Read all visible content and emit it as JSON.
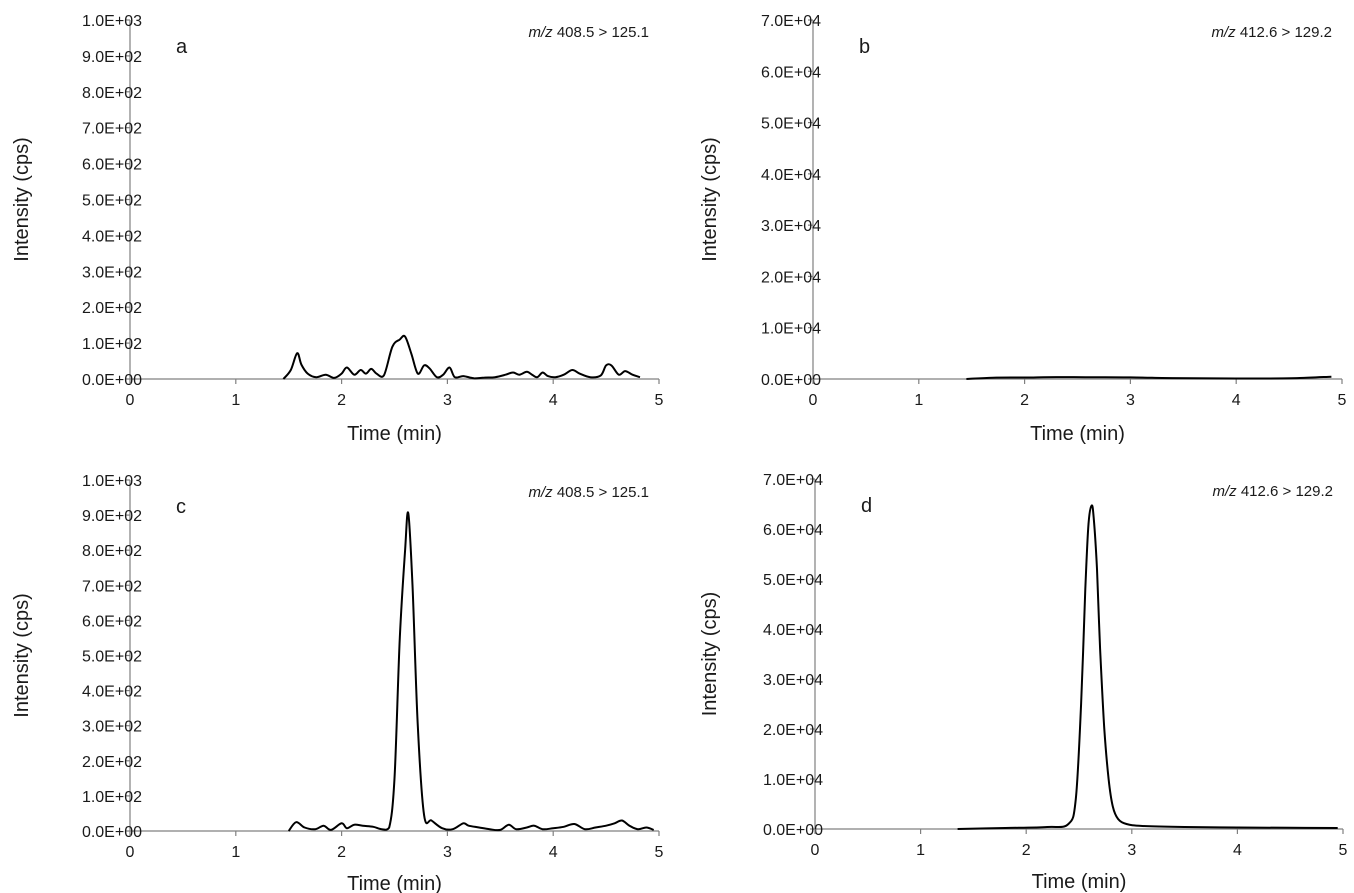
{
  "chart_data": [
    {
      "type": "line",
      "panel_label": "a",
      "annotation": {
        "mz": "m/z",
        "rest": "408.5  > 125.1"
      },
      "xlabel": "Time (min)",
      "ylabel": "Intensity (cps)",
      "xlim": [
        0,
        5
      ],
      "ylim": [
        0,
        1000
      ],
      "x_ticks": [
        0,
        1,
        2,
        3,
        4,
        5
      ],
      "x_tick_labels": [
        "0",
        "1",
        "2",
        "3",
        "4",
        "5"
      ],
      "y_ticks": [
        0,
        100,
        200,
        300,
        400,
        500,
        600,
        700,
        800,
        900,
        1000
      ],
      "y_tick_labels": [
        "0.0E+00",
        "1.0E+02",
        "2.0E+02",
        "3.0E+02",
        "4.0E+02",
        "5.0E+02",
        "6.0E+02",
        "7.0E+02",
        "8.0E+02",
        "9.0E+02",
        "1.0E+03"
      ],
      "line_color": "#000000",
      "series": [
        {
          "x": [
            1.45,
            1.52,
            1.58,
            1.62,
            1.68,
            1.76,
            1.85,
            1.93,
            2.0,
            2.05,
            2.12,
            2.18,
            2.23,
            2.28,
            2.33,
            2.4,
            2.48,
            2.55,
            2.6,
            2.66,
            2.72,
            2.78,
            2.83,
            2.9,
            2.96,
            3.02,
            3.07,
            3.15,
            3.25,
            3.35,
            3.45,
            3.55,
            3.62,
            3.68,
            3.75,
            3.8,
            3.85,
            3.9,
            3.95,
            4.02,
            4.1,
            4.18,
            4.25,
            4.35,
            4.45,
            4.5,
            4.55,
            4.62,
            4.68,
            4.75,
            4.82
          ],
          "y": [
            0,
            25,
            72,
            40,
            15,
            5,
            12,
            3,
            15,
            32,
            12,
            25,
            15,
            28,
            15,
            10,
            90,
            110,
            118,
            70,
            15,
            38,
            30,
            5,
            12,
            32,
            5,
            8,
            2,
            4,
            5,
            12,
            18,
            12,
            20,
            12,
            5,
            18,
            8,
            5,
            12,
            25,
            15,
            5,
            10,
            38,
            38,
            12,
            22,
            12,
            5
          ]
        }
      ]
    },
    {
      "type": "line",
      "panel_label": "b",
      "annotation": {
        "mz": "m/z",
        "rest": "412.6  > 129.2"
      },
      "xlabel": "Time (min)",
      "ylabel": "Intensity (cps)",
      "xlim": [
        0,
        5
      ],
      "ylim": [
        0,
        70000
      ],
      "x_ticks": [
        0,
        1,
        2,
        3,
        4,
        5
      ],
      "x_tick_labels": [
        "0",
        "1",
        "2",
        "3",
        "4",
        "5"
      ],
      "y_ticks": [
        0,
        10000,
        20000,
        30000,
        40000,
        50000,
        60000,
        70000
      ],
      "y_tick_labels": [
        "0.0E+00",
        "1.0E+04",
        "2.0E+04",
        "3.0E+04",
        "4.0E+04",
        "5.0E+04",
        "6.0E+04",
        "7.0E+04"
      ],
      "line_color": "#000000",
      "series": [
        {
          "x": [
            1.45,
            1.7,
            2.0,
            2.3,
            2.6,
            3.0,
            3.3,
            3.6,
            4.0,
            4.3,
            4.6,
            4.9
          ],
          "y": [
            0,
            250,
            300,
            380,
            350,
            320,
            200,
            150,
            100,
            100,
            200,
            450
          ]
        }
      ]
    },
    {
      "type": "line",
      "panel_label": "c",
      "annotation": {
        "mz": "m/z",
        "rest": "408.5  > 125.1"
      },
      "xlabel": "Time (min)",
      "ylabel": "Intensity (cps)",
      "xlim": [
        0,
        5
      ],
      "ylim": [
        0,
        1000
      ],
      "x_ticks": [
        0,
        1,
        2,
        3,
        4,
        5
      ],
      "x_tick_labels": [
        "0",
        "1",
        "2",
        "3",
        "4",
        "5"
      ],
      "y_ticks": [
        0,
        100,
        200,
        300,
        400,
        500,
        600,
        700,
        800,
        900,
        1000
      ],
      "y_tick_labels": [
        "0.0E+00",
        "1.0E+02",
        "2.0E+02",
        "3.0E+02",
        "4.0E+02",
        "5.0E+02",
        "6.0E+02",
        "7.0E+02",
        "8.0E+02",
        "9.0E+02",
        "1.0E+03"
      ],
      "line_color": "#000000",
      "series": [
        {
          "x": [
            1.5,
            1.57,
            1.65,
            1.75,
            1.83,
            1.9,
            2.0,
            2.05,
            2.12,
            2.2,
            2.3,
            2.38,
            2.45,
            2.5,
            2.55,
            2.6,
            2.63,
            2.67,
            2.72,
            2.78,
            2.85,
            2.95,
            3.05,
            3.15,
            3.2,
            3.3,
            3.4,
            3.5,
            3.58,
            3.65,
            3.75,
            3.82,
            3.9,
            4.0,
            4.1,
            4.2,
            4.3,
            4.4,
            4.5,
            4.58,
            4.65,
            4.72,
            4.8,
            4.88,
            4.95
          ],
          "y": [
            0,
            25,
            10,
            5,
            15,
            3,
            22,
            8,
            18,
            15,
            12,
            5,
            10,
            150,
            550,
            800,
            905,
            700,
            300,
            45,
            30,
            8,
            5,
            22,
            15,
            10,
            5,
            3,
            18,
            5,
            10,
            15,
            5,
            8,
            12,
            20,
            5,
            10,
            15,
            22,
            30,
            15,
            5,
            10,
            3
          ]
        }
      ]
    },
    {
      "type": "line",
      "panel_label": "d",
      "annotation": {
        "mz": "m/z",
        "rest": "412.6  > 129.2"
      },
      "xlabel": "Time (min)",
      "ylabel": "Intensity (cps)",
      "xlim": [
        0,
        5
      ],
      "ylim": [
        0,
        70000
      ],
      "x_ticks": [
        0,
        1,
        2,
        3,
        4,
        5
      ],
      "x_tick_labels": [
        "0",
        "1",
        "2",
        "3",
        "4",
        "5"
      ],
      "y_ticks": [
        0,
        10000,
        20000,
        30000,
        40000,
        50000,
        60000,
        70000
      ],
      "y_tick_labels": [
        "0.0E+00",
        "1.0E+04",
        "2.0E+04",
        "3.0E+04",
        "4.0E+04",
        "5.0E+04",
        "6.0E+04",
        "7.0E+04"
      ],
      "line_color": "#000000",
      "series": [
        {
          "x": [
            1.35,
            1.8,
            2.2,
            2.4,
            2.47,
            2.52,
            2.56,
            2.59,
            2.62,
            2.64,
            2.67,
            2.7,
            2.74,
            2.78,
            2.82,
            2.87,
            2.95,
            3.1,
            3.5,
            4.0,
            4.5,
            4.95
          ],
          "y": [
            0,
            200,
            400,
            1000,
            6000,
            25000,
            48000,
            61000,
            64700,
            62000,
            52000,
            36000,
            20000,
            10000,
            4500,
            2000,
            1000,
            600,
            400,
            300,
            250,
            200
          ]
        }
      ]
    }
  ]
}
